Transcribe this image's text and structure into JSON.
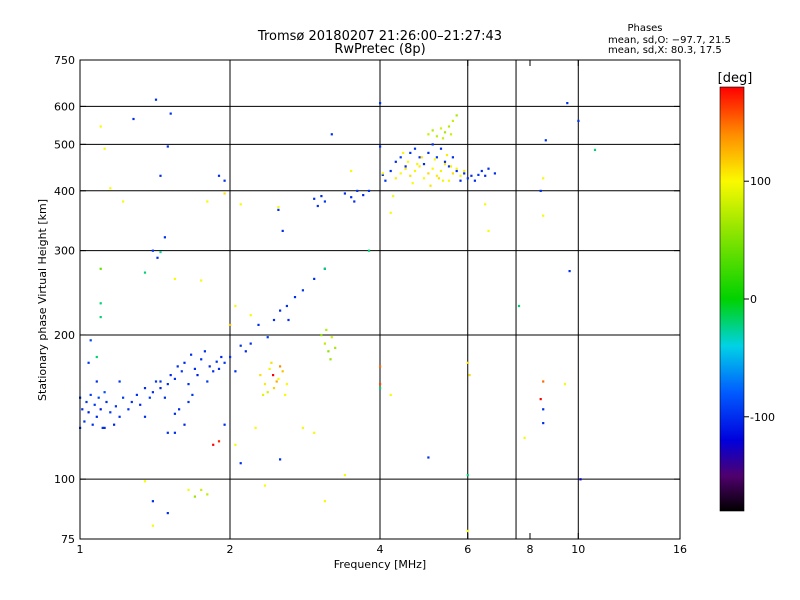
{
  "header": {
    "title_line1": "Tromsø 20180207 21:26:00–21:27:43",
    "title_line2": "RwPretec (8p)",
    "phases_title": "Phases",
    "phases_o": "mean, sd,O: −97.7, 21.5",
    "phases_x": "mean, sd,X:  80.3, 17.5"
  },
  "chart_data": {
    "type": "scatter",
    "xlabel": "Frequency [MHz]",
    "ylabel": "Stationary phase Virtual Height [km]",
    "x_scale": "log2",
    "y_scale": "log",
    "xlim": [
      1,
      16
    ],
    "ylim": [
      75,
      750
    ],
    "x_ticks": [
      1,
      2,
      4,
      6,
      8,
      10,
      16
    ],
    "x_grid": [
      2,
      4,
      6,
      7.5,
      10
    ],
    "y_ticks": [
      75,
      100,
      200,
      300,
      400,
      500,
      600,
      750
    ],
    "y_grid": [
      100,
      200,
      300,
      400,
      500,
      600
    ],
    "grid": true,
    "colorbar": {
      "label": "[deg]",
      "range": [
        -180,
        180
      ],
      "ticks": [
        -100,
        0,
        100
      ]
    },
    "points": [
      [
        1.0,
        148,
        -100
      ],
      [
        1.01,
        140,
        -102
      ],
      [
        1.02,
        132,
        -98
      ],
      [
        1.03,
        145,
        -95
      ],
      [
        1.04,
        138,
        -108
      ],
      [
        1.05,
        150,
        -92
      ],
      [
        1.06,
        130,
        -100
      ],
      [
        1.07,
        143,
        -96
      ],
      [
        1.08,
        135,
        -104
      ],
      [
        1.09,
        148,
        -90
      ],
      [
        1.1,
        140,
        -110
      ],
      [
        1.11,
        128,
        -97
      ],
      [
        1.12,
        152,
        -85
      ],
      [
        1.13,
        145,
        -100
      ],
      [
        1.15,
        138,
        -95
      ],
      [
        1.17,
        130,
        -105
      ],
      [
        1.18,
        142,
        -98
      ],
      [
        1.2,
        135,
        -100
      ],
      [
        1.22,
        148,
        -93
      ],
      [
        1.25,
        140,
        -100
      ],
      [
        1.27,
        145,
        -100
      ],
      [
        1.3,
        150,
        -97
      ],
      [
        1.32,
        143,
        -103
      ],
      [
        1.35,
        155,
        -100
      ],
      [
        1.38,
        148,
        -95
      ],
      [
        1.4,
        152,
        -100
      ],
      [
        1.42,
        160,
        -98
      ],
      [
        1.45,
        155,
        -105
      ],
      [
        1.48,
        148,
        -100
      ],
      [
        1.5,
        158,
        -100
      ],
      [
        1.52,
        165,
        -102
      ],
      [
        1.55,
        162,
        -97
      ],
      [
        1.57,
        172,
        -100
      ],
      [
        1.6,
        168,
        -95
      ],
      [
        1.62,
        175,
        -103
      ],
      [
        1.65,
        158,
        -100
      ],
      [
        1.67,
        182,
        -98
      ],
      [
        1.7,
        170,
        -100
      ],
      [
        1.72,
        165,
        -107
      ],
      [
        1.75,
        178,
        -100
      ],
      [
        1.78,
        185,
        -100
      ],
      [
        1.8,
        160,
        -95
      ],
      [
        1.82,
        172,
        -104
      ],
      [
        1.85,
        168,
        -100
      ],
      [
        1.88,
        176,
        -99
      ],
      [
        1.9,
        170,
        -100
      ],
      [
        1.92,
        180,
        -102
      ],
      [
        1.95,
        175,
        -96
      ],
      [
        2.0,
        180,
        -100
      ],
      [
        2.05,
        168,
        -100
      ],
      [
        2.1,
        190,
        -98
      ],
      [
        2.15,
        185,
        -103
      ],
      [
        2.2,
        192,
        -100
      ],
      [
        1.58,
        140,
        -100
      ],
      [
        1.62,
        130,
        -103
      ],
      [
        1.65,
        145,
        -98
      ],
      [
        1.55,
        137,
        -100
      ],
      [
        1.68,
        150,
        -95
      ],
      [
        1.5,
        125,
        -100
      ],
      [
        1.45,
        160,
        -100
      ],
      [
        1.04,
        175,
        -95
      ],
      [
        1.05,
        195,
        -90
      ],
      [
        1.08,
        160,
        -100
      ],
      [
        1.12,
        128,
        -100
      ],
      [
        1.2,
        160,
        -98
      ],
      [
        1.35,
        135,
        -100
      ],
      [
        2.3,
        165,
        110
      ],
      [
        2.35,
        158,
        105
      ],
      [
        2.4,
        170,
        95
      ],
      [
        2.45,
        155,
        115
      ],
      [
        2.5,
        162,
        100
      ],
      [
        2.55,
        168,
        120
      ],
      [
        2.33,
        150,
        90
      ],
      [
        2.42,
        175,
        110
      ],
      [
        2.48,
        160,
        130
      ],
      [
        2.38,
        152,
        85
      ],
      [
        2.6,
        158,
        100
      ],
      [
        2.52,
        172,
        140
      ],
      [
        2.44,
        165,
        180
      ],
      [
        2.58,
        150,
        100
      ],
      [
        3.05,
        200,
        60
      ],
      [
        3.1,
        192,
        75
      ],
      [
        3.15,
        185,
        55
      ],
      [
        3.2,
        198,
        80
      ],
      [
        3.25,
        188,
        65
      ],
      [
        3.12,
        205,
        70
      ],
      [
        3.18,
        178,
        60
      ],
      [
        2.28,
        210,
        -100
      ],
      [
        2.38,
        198,
        -95
      ],
      [
        2.45,
        215,
        -100
      ],
      [
        2.52,
        225,
        -102
      ],
      [
        2.6,
        230,
        -98
      ],
      [
        2.7,
        240,
        -100
      ],
      [
        2.8,
        248,
        -95
      ],
      [
        2.95,
        262,
        -100
      ],
      [
        3.1,
        275,
        -100
      ],
      [
        2.95,
        385,
        -100
      ],
      [
        3.0,
        372,
        -98
      ],
      [
        3.05,
        390,
        -102
      ],
      [
        3.1,
        380,
        -95
      ],
      [
        3.4,
        395,
        -100
      ],
      [
        3.5,
        388,
        -100
      ],
      [
        3.6,
        400,
        -98
      ],
      [
        3.7,
        392,
        -103
      ],
      [
        3.55,
        380,
        -100
      ],
      [
        4.05,
        432,
        -100
      ],
      [
        4.1,
        420,
        -98
      ],
      [
        4.2,
        440,
        -100
      ],
      [
        4.3,
        460,
        -103
      ],
      [
        4.4,
        470,
        -95
      ],
      [
        4.5,
        450,
        -100
      ],
      [
        4.6,
        480,
        -100
      ],
      [
        4.7,
        490,
        -98
      ],
      [
        4.8,
        470,
        -100
      ],
      [
        4.9,
        455,
        -102
      ],
      [
        5.0,
        480,
        -100
      ],
      [
        5.1,
        500,
        -100
      ],
      [
        5.2,
        470,
        -95
      ],
      [
        5.3,
        490,
        -100
      ],
      [
        5.4,
        460,
        -100
      ],
      [
        5.5,
        450,
        -98
      ],
      [
        5.6,
        470,
        -100
      ],
      [
        5.7,
        440,
        -100
      ],
      [
        5.8,
        420,
        -102
      ],
      [
        5.9,
        435,
        -100
      ],
      [
        6.0,
        425,
        -98
      ],
      [
        6.1,
        430,
        -100
      ],
      [
        6.2,
        420,
        -100
      ],
      [
        6.3,
        432,
        -96
      ],
      [
        6.4,
        440,
        -100
      ],
      [
        6.5,
        430,
        -100
      ],
      [
        6.6,
        445,
        -100
      ],
      [
        6.8,
        435,
        -100
      ],
      [
        4.3,
        425,
        105
      ],
      [
        4.4,
        435,
        100
      ],
      [
        4.5,
        445,
        108
      ],
      [
        4.6,
        430,
        110
      ],
      [
        4.7,
        440,
        98
      ],
      [
        4.8,
        450,
        105
      ],
      [
        4.9,
        425,
        100
      ],
      [
        5.0,
        435,
        112
      ],
      [
        5.1,
        445,
        100
      ],
      [
        5.2,
        430,
        105
      ],
      [
        5.3,
        440,
        95
      ],
      [
        5.4,
        455,
        108
      ],
      [
        5.5,
        420,
        100
      ],
      [
        5.6,
        435,
        110
      ],
      [
        5.7,
        445,
        102
      ],
      [
        5.8,
        430,
        98
      ],
      [
        5.9,
        440,
        105
      ],
      [
        4.55,
        460,
        100
      ],
      [
        4.85,
        470,
        108
      ],
      [
        5.15,
        465,
        100
      ],
      [
        5.45,
        475,
        105
      ],
      [
        4.65,
        415,
        100
      ],
      [
        5.05,
        410,
        108
      ],
      [
        5.35,
        420,
        96
      ],
      [
        4.45,
        480,
        102
      ],
      [
        5.25,
        425,
        110
      ],
      [
        4.75,
        455,
        98
      ],
      [
        5.55,
        450,
        104
      ],
      [
        5.0,
        525,
        80
      ],
      [
        5.1,
        535,
        70
      ],
      [
        5.2,
        520,
        75
      ],
      [
        5.3,
        540,
        85
      ],
      [
        5.4,
        530,
        65
      ],
      [
        5.5,
        545,
        72
      ],
      [
        5.6,
        560,
        80
      ],
      [
        5.7,
        575,
        68
      ],
      [
        5.35,
        515,
        78
      ],
      [
        5.55,
        525,
        82
      ],
      [
        1.42,
        620,
        -100
      ],
      [
        1.28,
        565,
        -100
      ],
      [
        1.52,
        580,
        -98
      ],
      [
        1.5,
        495,
        -100
      ],
      [
        1.45,
        430,
        -100
      ],
      [
        1.48,
        320,
        -100
      ],
      [
        1.43,
        290,
        -100
      ],
      [
        1.4,
        300,
        -98
      ],
      [
        1.9,
        430,
        -100
      ],
      [
        1.95,
        420,
        -100
      ],
      [
        2.5,
        365,
        -100
      ],
      [
        2.55,
        330,
        -100
      ],
      [
        2.62,
        215,
        -100
      ],
      [
        3.2,
        525,
        -100
      ],
      [
        3.8,
        400,
        -100
      ],
      [
        4.0,
        495,
        -100
      ],
      [
        4.0,
        610,
        -100
      ],
      [
        1.1,
        545,
        100
      ],
      [
        1.12,
        490,
        100
      ],
      [
        1.15,
        405,
        100
      ],
      [
        1.22,
        380,
        100
      ],
      [
        1.8,
        380,
        100
      ],
      [
        2.5,
        370,
        100
      ],
      [
        2.1,
        375,
        100
      ],
      [
        1.95,
        395,
        110
      ],
      [
        3.5,
        440,
        100
      ],
      [
        4.05,
        435,
        100
      ],
      [
        4.2,
        360,
        100
      ],
      [
        4.25,
        390,
        100
      ],
      [
        6.5,
        375,
        100
      ],
      [
        6.6,
        330,
        100
      ],
      [
        8.5,
        355,
        100
      ],
      [
        8.5,
        425,
        100
      ],
      [
        8.4,
        400,
        -100
      ],
      [
        8.6,
        510,
        -100
      ],
      [
        9.5,
        610,
        -100
      ],
      [
        9.6,
        272,
        -100
      ],
      [
        10.0,
        560,
        -100
      ],
      [
        10.8,
        487,
        -20
      ],
      [
        7.6,
        230,
        -20
      ],
      [
        6.0,
        175,
        110
      ],
      [
        6.05,
        165,
        110
      ],
      [
        4.0,
        172,
        150
      ],
      [
        4.0,
        158,
        160
      ],
      [
        4.0,
        155,
        -20
      ],
      [
        4.2,
        150,
        100
      ],
      [
        3.1,
        275,
        -20
      ],
      [
        3.8,
        300,
        -20
      ],
      [
        1.1,
        275,
        40
      ],
      [
        1.1,
        233,
        -20
      ],
      [
        1.1,
        218,
        -20
      ],
      [
        1.08,
        180,
        -20
      ],
      [
        1.45,
        298,
        -30
      ],
      [
        1.35,
        270,
        -20
      ],
      [
        1.75,
        260,
        100
      ],
      [
        2.2,
        220,
        100
      ],
      [
        2.05,
        230,
        100
      ],
      [
        2.0,
        210,
        120
      ],
      [
        1.55,
        262,
        100
      ],
      [
        1.0,
        128,
        -100
      ],
      [
        1.55,
        125,
        -100
      ],
      [
        1.95,
        130,
        -100
      ],
      [
        1.9,
        120,
        170
      ],
      [
        1.85,
        118,
        180
      ],
      [
        2.05,
        118,
        100
      ],
      [
        2.25,
        128,
        100
      ],
      [
        2.52,
        110,
        -100
      ],
      [
        2.8,
        128,
        100
      ],
      [
        2.95,
        125,
        100
      ],
      [
        2.1,
        108,
        -100
      ],
      [
        3.4,
        102,
        100
      ],
      [
        5.0,
        111,
        -100
      ],
      [
        6.0,
        102,
        -20
      ],
      [
        7.8,
        122,
        100
      ],
      [
        8.5,
        140,
        -100
      ],
      [
        8.5,
        131,
        -100
      ],
      [
        8.4,
        147,
        180
      ],
      [
        8.5,
        160,
        150
      ],
      [
        9.4,
        158,
        100
      ],
      [
        1.4,
        90,
        -100
      ],
      [
        1.5,
        85,
        -100
      ],
      [
        1.65,
        95,
        100
      ],
      [
        1.7,
        92,
        60
      ],
      [
        1.75,
        95,
        80
      ],
      [
        1.8,
        93,
        75
      ],
      [
        1.35,
        99,
        100
      ],
      [
        2.35,
        97,
        100
      ],
      [
        3.1,
        90,
        100
      ],
      [
        6.0,
        78,
        100
      ],
      [
        1.4,
        80,
        100
      ],
      [
        10.1,
        100,
        -120
      ]
    ]
  }
}
